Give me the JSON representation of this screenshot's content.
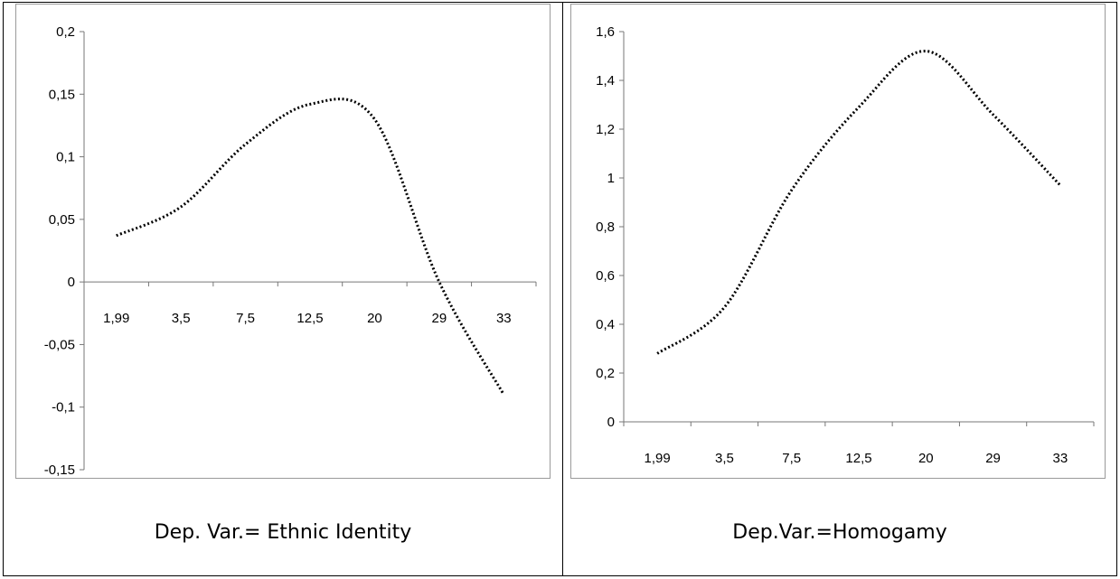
{
  "captions": {
    "left": "Dep. Var.= Ethnic Identity",
    "right": "Dep.Var.=Homogamy"
  },
  "chart_data": [
    {
      "type": "line",
      "title": "",
      "xlabel": "",
      "ylabel": "",
      "categories": [
        "1,99",
        "3,5",
        "7,5",
        "12,5",
        "20",
        "29",
        "33"
      ],
      "values": [
        0.037,
        0.06,
        0.11,
        0.142,
        0.13,
        0.0,
        -0.09
      ],
      "y_ticks": [
        "0,2",
        "0,15",
        "0,1",
        "0,05",
        "0",
        "-0,05",
        "-0,1",
        "-0,15"
      ],
      "ylim": [
        -0.15,
        0.2
      ],
      "grid": false,
      "legend": "none",
      "line_style": "dotted",
      "color": "#000000"
    },
    {
      "type": "line",
      "title": "",
      "xlabel": "",
      "ylabel": "",
      "categories": [
        "1,99",
        "3,5",
        "7,5",
        "12,5",
        "20",
        "29",
        "33"
      ],
      "values": [
        0.28,
        0.47,
        0.95,
        1.29,
        1.52,
        1.26,
        0.97
      ],
      "y_ticks": [
        "1,6",
        "1,4",
        "1,2",
        "1",
        "0,8",
        "0,6",
        "0,4",
        "0,2",
        "0"
      ],
      "ylim": [
        0,
        1.6
      ],
      "grid": false,
      "legend": "none",
      "line_style": "dotted",
      "color": "#000000"
    }
  ]
}
